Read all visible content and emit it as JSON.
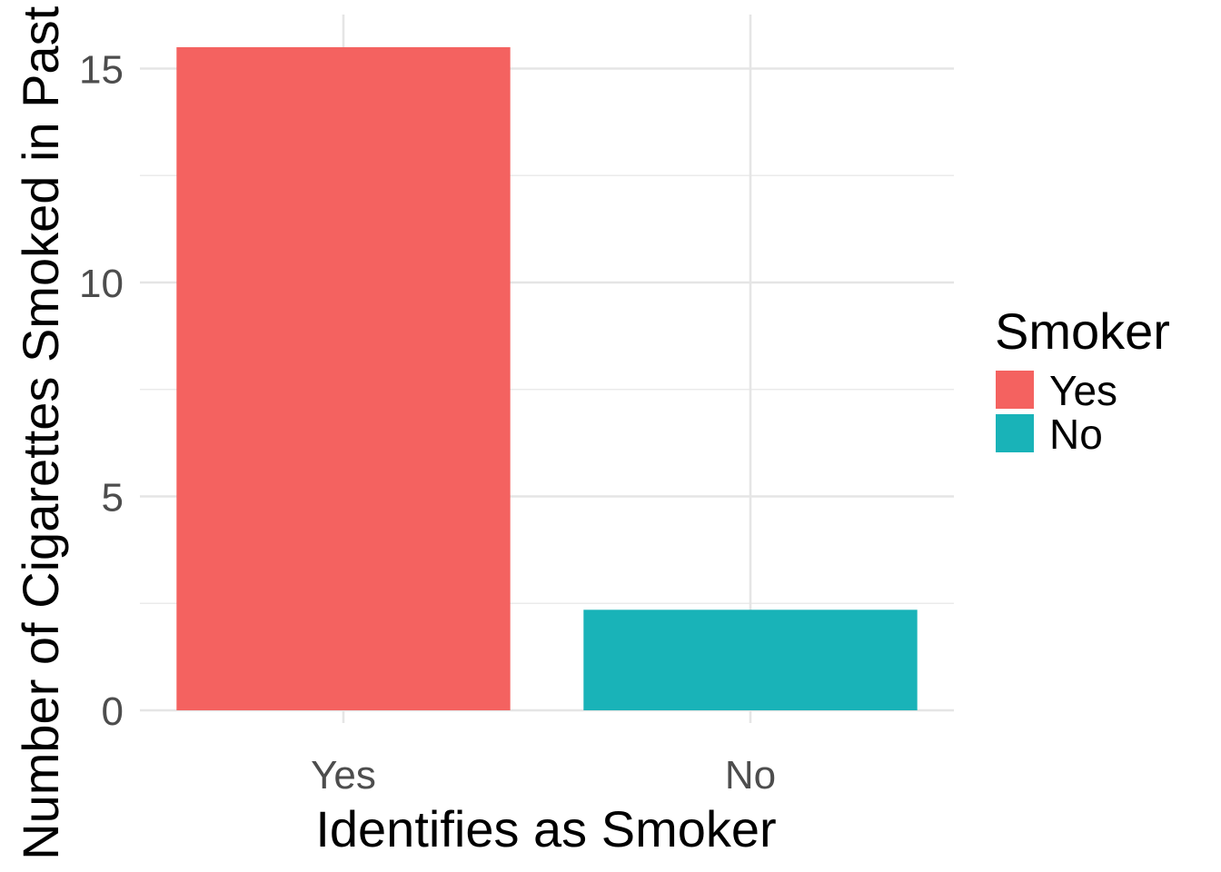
{
  "chart_data": {
    "type": "bar",
    "title": "",
    "xlabel": "Identifies as Smoker",
    "ylabel": "Number of Cigarettes Smoked in Past Week",
    "categories": [
      "Yes",
      "No"
    ],
    "values": [
      15.5,
      2.35
    ],
    "colors": [
      "#F46260",
      "#19B3B8"
    ],
    "ylim": [
      0,
      16.3
    ],
    "yticks": [
      0,
      5,
      10,
      15
    ],
    "grid": true,
    "legend": {
      "title": "Smoker",
      "position": "right",
      "items": [
        {
          "label": "Yes",
          "color": "#F46260"
        },
        {
          "label": "No",
          "color": "#19B3B8"
        }
      ]
    }
  }
}
